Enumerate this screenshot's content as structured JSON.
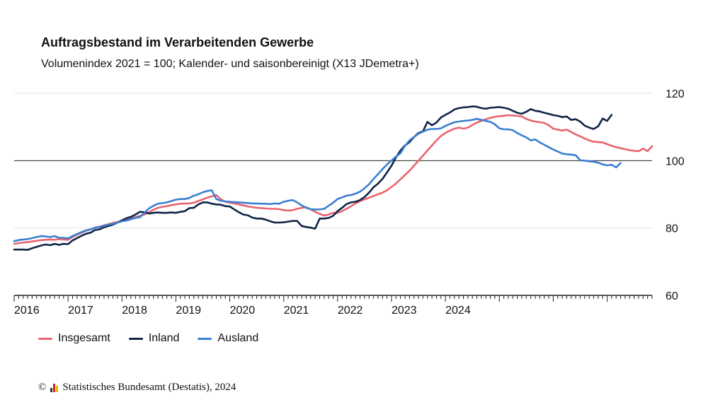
{
  "chart_data": {
    "type": "line",
    "title": "Auftragsbestand im Verarbeitenden Gewerbe",
    "subtitle": "Volumenindex 2021 = 100; Kalender- und saisonbereinigt (X13 JDemetra+)",
    "x_labels": [
      "2016",
      "2017",
      "2018",
      "2019",
      "2020",
      "2021",
      "2022",
      "2023",
      "2024"
    ],
    "x_start": "2016-01",
    "ylim": [
      60,
      120
    ],
    "y_ticks": [
      60,
      80,
      100,
      120
    ],
    "reference_line": 100,
    "series": [
      {
        "name": "Insgesamt",
        "color": "#e8646f",
        "values": [
          75.3,
          75.5,
          75.7,
          75.8,
          76,
          76.2,
          76.4,
          76.5,
          76.6,
          76.5,
          76.7,
          76.6,
          76.5,
          77.3,
          78,
          78.6,
          79.2,
          79.6,
          80.1,
          80.4,
          80.8,
          81.1,
          81.5,
          81.8,
          82,
          82.4,
          82.8,
          83.2,
          83.6,
          84,
          84.7,
          85.4,
          86,
          86.3,
          86.5,
          86.8,
          87,
          87.2,
          87.3,
          87.3,
          87.5,
          88,
          88.5,
          89,
          89.4,
          89.8,
          88.5,
          87.8,
          87.5,
          87.3,
          87,
          86.7,
          86.4,
          86.2,
          86,
          85.9,
          85.8,
          85.7,
          85.7,
          85.6,
          85.3,
          85.2,
          85.3,
          85.7,
          86,
          86.2,
          85.5,
          84.8,
          84.2,
          83.7,
          84,
          84.5,
          84.5,
          85,
          85.7,
          86.5,
          87.3,
          88,
          88.5,
          89,
          89.5,
          90,
          90.5,
          91.2,
          92.2,
          93.2,
          94.5,
          95.7,
          97,
          98.5,
          100,
          101.5,
          103,
          104.5,
          106,
          107.3,
          108.2,
          108.9,
          109.5,
          109.8,
          109.5,
          109.8,
          110.6,
          111.3,
          111.8,
          112.3,
          112.7,
          113,
          113.2,
          113.3,
          113.5,
          113.4,
          113.3,
          113.1,
          112.4,
          111.9,
          111.6,
          111.4,
          111.2,
          110.5,
          109.5,
          109.2,
          108.9,
          109.2,
          108.5,
          107.8,
          107.2,
          106.6,
          106,
          105.6,
          105.5,
          105.4,
          104.9,
          104.4,
          104,
          103.7,
          103.4,
          103.1,
          102.9,
          102.8,
          103.6,
          102.8,
          104.3
        ]
      },
      {
        "name": "Inland",
        "color": "#0f2447",
        "values": [
          73.6,
          73.6,
          73.6,
          73.5,
          74,
          74.4,
          74.8,
          75.1,
          74.9,
          75.3,
          75,
          75.3,
          75.2,
          76.3,
          77,
          77.7,
          78.3,
          78.6,
          79.4,
          79.6,
          80.2,
          80.6,
          81,
          81.6,
          82.3,
          82.9,
          83.3,
          84,
          84.8,
          84.7,
          84.3,
          84.5,
          84.6,
          84.5,
          84.5,
          84.6,
          84.5,
          84.8,
          85,
          85.9,
          86,
          87,
          87.6,
          87.6,
          87.2,
          87,
          86.9,
          86.5,
          86.4,
          85.5,
          84.7,
          84,
          83.8,
          83.1,
          82.8,
          82.8,
          82.5,
          82,
          81.6,
          81.6,
          81.7,
          81.9,
          82.1,
          82.1,
          80.6,
          80.3,
          80.1,
          79.8,
          82.8,
          82.8,
          83,
          83.6,
          85,
          86,
          87.1,
          87.6,
          87.8,
          88.3,
          89.2,
          90.5,
          92.1,
          93.2,
          94.6,
          96.5,
          98.5,
          101,
          103,
          104.5,
          105.5,
          107,
          108.2,
          108.7,
          111.5,
          110.5,
          111.3,
          112.8,
          113.6,
          114.3,
          115.2,
          115.6,
          115.8,
          115.9,
          116.1,
          116,
          115.6,
          115.4,
          115.7,
          115.8,
          115.9,
          115.7,
          115.4,
          114.8,
          114.2,
          113.9,
          114.5,
          115.3,
          114.8,
          114.6,
          114.2,
          113.9,
          113.5,
          113.3,
          112.9,
          113.1,
          112.1,
          112.3,
          111.6,
          110.4,
          109.8,
          109.4,
          110.2,
          112.5,
          111.8,
          113.6
        ]
      },
      {
        "name": "Ausland",
        "color": "#3a7fd0",
        "values": [
          76.1,
          76.4,
          76.6,
          76.7,
          77,
          77.3,
          77.6,
          77.5,
          77.3,
          77.6,
          77.1,
          77.1,
          76.9,
          77.6,
          78.2,
          78.8,
          79.3,
          79.6,
          80.1,
          80.3,
          80.6,
          81,
          81.2,
          81.6,
          82,
          82.2,
          82.6,
          83,
          83.2,
          84.5,
          85.8,
          86.6,
          87.2,
          87.4,
          87.6,
          88,
          88.4,
          88.6,
          88.6,
          88.9,
          89.6,
          90,
          90.6,
          91,
          91.2,
          88.6,
          88.1,
          87.9,
          87.8,
          87.7,
          87.6,
          87.5,
          87.4,
          87.3,
          87.3,
          87.2,
          87.2,
          87.1,
          87.3,
          87.2,
          87.8,
          88.1,
          88.3,
          87.6,
          86.7,
          86,
          85.6,
          85.5,
          85.5,
          85.7,
          86.6,
          87.5,
          88.6,
          89.1,
          89.6,
          89.8,
          90.2,
          90.8,
          91.8,
          93,
          94.6,
          96,
          97.5,
          98.9,
          100,
          101.2,
          102.2,
          104.4,
          106,
          107,
          108,
          108.6,
          109.2,
          109.4,
          109.4,
          109.6,
          110.3,
          110.9,
          111.4,
          111.6,
          111.8,
          111.9,
          112.1,
          112.4,
          112.1,
          111.8,
          111.5,
          110.8,
          109.6,
          109.3,
          109.3,
          109,
          108.2,
          107.5,
          106.9,
          106,
          106.3,
          105.4,
          104.7,
          104,
          103.3,
          102.7,
          102.1,
          101.9,
          101.8,
          101.6,
          100.1,
          100,
          99.8,
          99.7,
          99.4,
          98.9,
          98.6,
          98.8,
          98,
          99.3
        ]
      }
    ],
    "legend_position": "bottom-left",
    "grid": true
  },
  "footer": {
    "copyright": "©",
    "source": "Statistisches Bundesamt (Destatis), 2024",
    "logo_colors": [
      "#333333",
      "#d1232a",
      "#f2b400"
    ]
  }
}
